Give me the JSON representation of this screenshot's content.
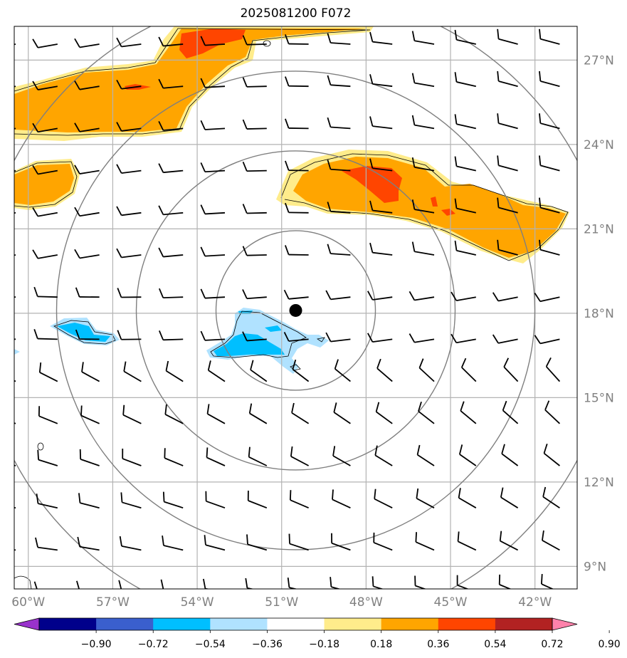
{
  "title": "2025081200 F072",
  "map": {
    "lon_labels": [
      "60°W",
      "57°W",
      "54°W",
      "51°W",
      "48°W",
      "45°W",
      "42°W"
    ],
    "lat_labels": [
      "27°N",
      "24°N",
      "21°N",
      "18°N",
      "15°N",
      "12°N",
      "9°N"
    ],
    "lon_ticks": [
      -60,
      -57,
      -54,
      -51,
      -48,
      -45,
      -42
    ],
    "lat_ticks": [
      27,
      24,
      21,
      18,
      15,
      12,
      9
    ],
    "lon_range": [
      -60.5,
      -40.5
    ],
    "lat_range": [
      8.2,
      28.2
    ],
    "center_marker": {
      "lon": -50.5,
      "lat": 18.1
    },
    "range_rings_count": 4,
    "grid": true
  },
  "colorbar": {
    "tick_labels": [
      "−0.90",
      "−0.72",
      "−0.54",
      "−0.36",
      "−0.18",
      "0.18",
      "0.36",
      "0.54",
      "0.72",
      "0.90"
    ],
    "colors": [
      "#9932cc",
      "#00008b",
      "#3a5fcd",
      "#00bfff",
      "#b0e2ff",
      "#ffffff",
      "#ffec8b",
      "#ffa500",
      "#ff4500",
      "#b22222",
      "#ff82ab"
    ],
    "extend": "both"
  },
  "colors": {
    "grid": "#b3b3b3",
    "rings": "#7f7f7f",
    "axis_labels": "#808080"
  }
}
